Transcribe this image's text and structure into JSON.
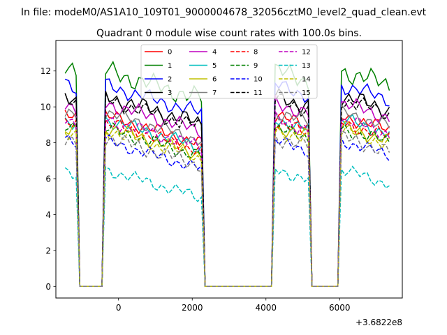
{
  "chart_data": {
    "type": "line",
    "suptitle": "In file: modeM0/AS1A10_109T01_9000004678_32056cztM0_level2_quad_clean.evt",
    "title": "Quadrant 0 module wise count rates with 100.0s bins.",
    "xlabel": "",
    "ylabel": "",
    "x_offset_label": "+3.6822e8",
    "xlim": [
      -1700,
      7700
    ],
    "ylim": [
      -0.65,
      13.7
    ],
    "xticks": [
      0,
      2000,
      4000,
      6000
    ],
    "yticks": [
      0,
      2,
      4,
      6,
      8,
      10,
      12
    ],
    "grid": false,
    "legend": {
      "location": "upper center",
      "columns": 4
    },
    "x_start": -1450,
    "x_step": 100,
    "gaps": [
      [
        -1050,
        -450
      ],
      [
        2350,
        4150
      ],
      [
        5250,
        5950
      ]
    ],
    "series": [
      {
        "name": "0",
        "color": "#ff0000",
        "dash": "solid",
        "level": 9.5,
        "amp": 0.45,
        "phase": 1.0
      },
      {
        "name": "1",
        "color": "#008000",
        "dash": "solid",
        "level": 12.0,
        "amp": 0.65,
        "phase": 2.0
      },
      {
        "name": "2",
        "color": "#0000ff",
        "dash": "solid",
        "level": 11.2,
        "amp": 0.5,
        "phase": 3.0
      },
      {
        "name": "3",
        "color": "#000000",
        "dash": "solid",
        "level": 10.6,
        "amp": 0.55,
        "phase": 4.0
      },
      {
        "name": "4",
        "color": "#bf00bf",
        "dash": "solid",
        "level": 10.2,
        "amp": 0.5,
        "phase": 5.0
      },
      {
        "name": "5",
        "color": "#00bfbf",
        "dash": "solid",
        "level": 9.3,
        "amp": 0.45,
        "phase": 6.0
      },
      {
        "name": "6",
        "color": "#bfbf00",
        "dash": "solid",
        "level": 8.9,
        "amp": 0.45,
        "phase": 7.0
      },
      {
        "name": "7",
        "color": "#808080",
        "dash": "solid",
        "level": 9.7,
        "amp": 0.45,
        "phase": 8.0
      },
      {
        "name": "8",
        "color": "#ff0000",
        "dash": "dashed",
        "level": 9.1,
        "amp": 0.45,
        "phase": 9.0
      },
      {
        "name": "9",
        "color": "#008000",
        "dash": "dashed",
        "level": 8.8,
        "amp": 0.45,
        "phase": 10.0
      },
      {
        "name": "10",
        "color": "#0000ff",
        "dash": "dashed",
        "level": 8.1,
        "amp": 0.4,
        "phase": 11.0
      },
      {
        "name": "11",
        "color": "#000000",
        "dash": "dashed",
        "level": 10.4,
        "amp": 0.5,
        "phase": 12.0
      },
      {
        "name": "12",
        "color": "#bf00bf",
        "dash": "dashed",
        "level": 9.3,
        "amp": 0.45,
        "phase": 13.0
      },
      {
        "name": "13",
        "color": "#00bfbf",
        "dash": "dashed",
        "level": 6.5,
        "amp": 0.4,
        "phase": 14.0
      },
      {
        "name": "14",
        "color": "#bfbf00",
        "dash": "dashed",
        "level": 8.7,
        "amp": 0.45,
        "phase": 15.0
      },
      {
        "name": "15",
        "color": "#808080",
        "dash": "dashed",
        "level": 8.3,
        "amp": 0.5,
        "phase": 16.0
      }
    ]
  }
}
